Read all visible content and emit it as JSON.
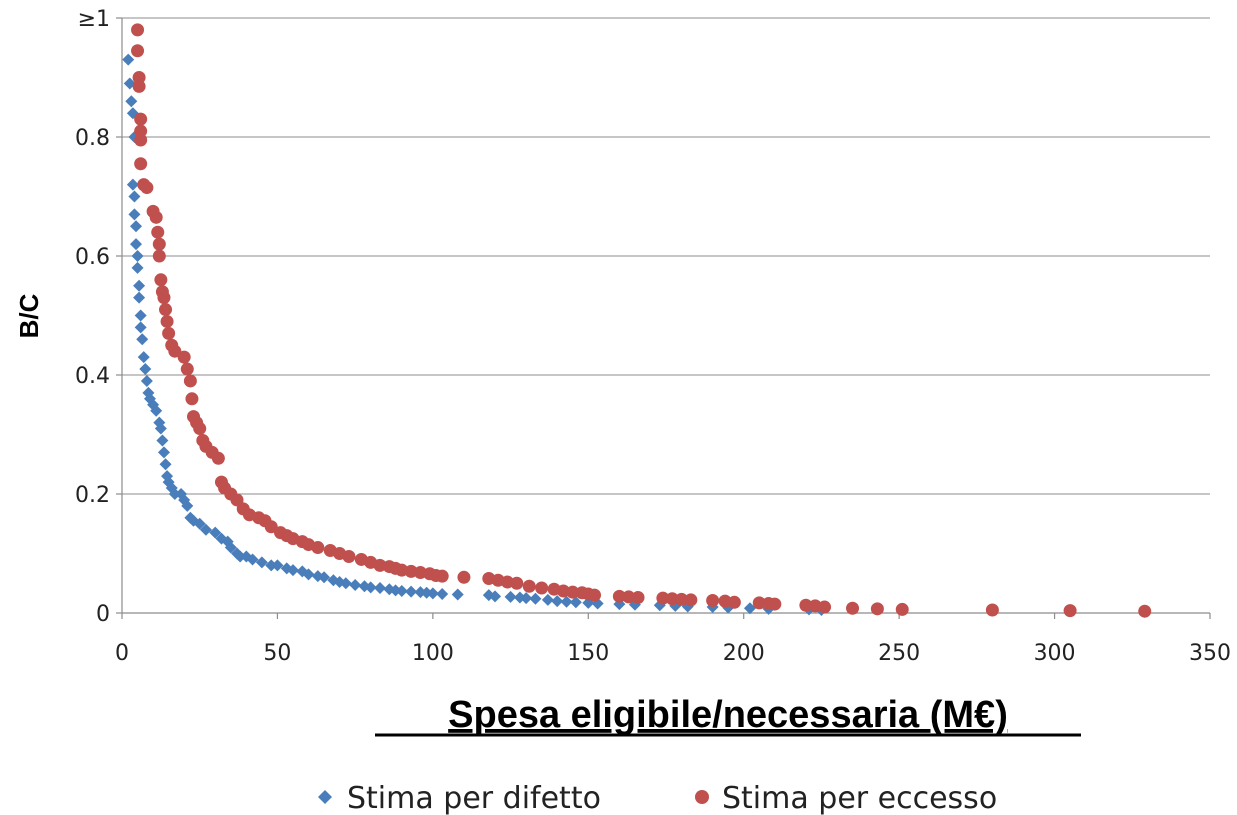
{
  "chart_data": {
    "type": "scatter",
    "xlabel": "Spesa eligibile/necessaria (M€)",
    "ylabel": "B/C",
    "xlim": [
      0,
      350
    ],
    "ylim": [
      0,
      1
    ],
    "xticks": [
      "0",
      "50",
      "100",
      "150",
      "200",
      "250",
      "300",
      "350"
    ],
    "yticks": [
      "0",
      "0.2",
      "0.4",
      "0.6",
      "0.8",
      "≥1"
    ],
    "grid": "horizontal",
    "legend_position": "bottom",
    "series": [
      {
        "name": "Stima per difetto",
        "marker": "diamond",
        "color": "#4a7ebb",
        "points": [
          [
            2,
            0.93
          ],
          [
            2.5,
            0.89
          ],
          [
            3,
            0.86
          ],
          [
            3.5,
            0.84
          ],
          [
            4,
            0.8
          ],
          [
            3.5,
            0.72
          ],
          [
            4,
            0.7
          ],
          [
            4,
            0.67
          ],
          [
            4.5,
            0.65
          ],
          [
            4.5,
            0.62
          ],
          [
            5,
            0.6
          ],
          [
            5,
            0.58
          ],
          [
            5.5,
            0.55
          ],
          [
            5.5,
            0.53
          ],
          [
            6,
            0.5
          ],
          [
            6,
            0.48
          ],
          [
            6.5,
            0.46
          ],
          [
            7,
            0.43
          ],
          [
            7.5,
            0.41
          ],
          [
            8,
            0.39
          ],
          [
            8.5,
            0.37
          ],
          [
            9,
            0.36
          ],
          [
            10,
            0.35
          ],
          [
            11,
            0.34
          ],
          [
            12,
            0.32
          ],
          [
            12.5,
            0.31
          ],
          [
            13,
            0.29
          ],
          [
            13.5,
            0.27
          ],
          [
            14,
            0.25
          ],
          [
            14.5,
            0.23
          ],
          [
            15,
            0.22
          ],
          [
            16,
            0.21
          ],
          [
            17,
            0.2
          ],
          [
            19,
            0.2
          ],
          [
            20,
            0.19
          ],
          [
            21,
            0.18
          ],
          [
            22,
            0.16
          ],
          [
            23,
            0.155
          ],
          [
            25,
            0.15
          ],
          [
            27,
            0.14
          ],
          [
            30,
            0.135
          ],
          [
            32,
            0.125
          ],
          [
            34,
            0.12
          ],
          [
            35,
            0.11
          ],
          [
            37,
            0.1
          ],
          [
            38,
            0.095
          ],
          [
            40,
            0.095
          ],
          [
            42,
            0.09
          ],
          [
            45,
            0.085
          ],
          [
            48,
            0.08
          ],
          [
            50,
            0.08
          ],
          [
            53,
            0.075
          ],
          [
            55,
            0.072
          ],
          [
            58,
            0.07
          ],
          [
            60,
            0.065
          ],
          [
            63,
            0.062
          ],
          [
            65,
            0.06
          ],
          [
            68,
            0.055
          ],
          [
            70,
            0.052
          ],
          [
            72,
            0.05
          ],
          [
            75,
            0.047
          ],
          [
            78,
            0.045
          ],
          [
            80,
            0.043
          ],
          [
            83,
            0.042
          ],
          [
            86,
            0.04
          ],
          [
            88,
            0.038
          ],
          [
            90,
            0.037
          ],
          [
            93,
            0.036
          ],
          [
            96,
            0.035
          ],
          [
            98,
            0.034
          ],
          [
            100,
            0.033
          ],
          [
            103,
            0.032
          ],
          [
            108,
            0.031
          ],
          [
            118,
            0.03
          ],
          [
            120,
            0.028
          ],
          [
            125,
            0.027
          ],
          [
            128,
            0.026
          ],
          [
            130,
            0.025
          ],
          [
            133,
            0.024
          ],
          [
            137,
            0.022
          ],
          [
            140,
            0.02
          ],
          [
            143,
            0.019
          ],
          [
            146,
            0.018
          ],
          [
            150,
            0.017
          ],
          [
            153,
            0.016
          ],
          [
            160,
            0.015
          ],
          [
            165,
            0.014
          ],
          [
            173,
            0.013
          ],
          [
            178,
            0.012
          ],
          [
            182,
            0.011
          ],
          [
            190,
            0.01
          ],
          [
            195,
            0.009
          ],
          [
            202,
            0.008
          ],
          [
            208,
            0.007
          ],
          [
            221,
            0.006
          ],
          [
            225,
            0.005
          ]
        ]
      },
      {
        "name": "Stima per eccesso",
        "marker": "circle",
        "color": "#c0504d",
        "points": [
          [
            5,
            0.98
          ],
          [
            5,
            0.945
          ],
          [
            5.5,
            0.9
          ],
          [
            5.5,
            0.885
          ],
          [
            6,
            0.83
          ],
          [
            6,
            0.81
          ],
          [
            6,
            0.795
          ],
          [
            6,
            0.755
          ],
          [
            7,
            0.72
          ],
          [
            8,
            0.715
          ],
          [
            10,
            0.675
          ],
          [
            11,
            0.665
          ],
          [
            11.5,
            0.64
          ],
          [
            12,
            0.62
          ],
          [
            12,
            0.6
          ],
          [
            12.5,
            0.56
          ],
          [
            13,
            0.54
          ],
          [
            13.5,
            0.53
          ],
          [
            14,
            0.51
          ],
          [
            14.5,
            0.49
          ],
          [
            15,
            0.47
          ],
          [
            16,
            0.45
          ],
          [
            17,
            0.44
          ],
          [
            20,
            0.43
          ],
          [
            21,
            0.41
          ],
          [
            22,
            0.39
          ],
          [
            22.5,
            0.36
          ],
          [
            23,
            0.33
          ],
          [
            24,
            0.32
          ],
          [
            25,
            0.31
          ],
          [
            26,
            0.29
          ],
          [
            27,
            0.28
          ],
          [
            29,
            0.27
          ],
          [
            31,
            0.26
          ],
          [
            32,
            0.22
          ],
          [
            33,
            0.21
          ],
          [
            35,
            0.2
          ],
          [
            37,
            0.19
          ],
          [
            39,
            0.175
          ],
          [
            41,
            0.165
          ],
          [
            44,
            0.16
          ],
          [
            46,
            0.155
          ],
          [
            48,
            0.145
          ],
          [
            51,
            0.135
          ],
          [
            53,
            0.13
          ],
          [
            55,
            0.125
          ],
          [
            58,
            0.12
          ],
          [
            60,
            0.115
          ],
          [
            63,
            0.11
          ],
          [
            67,
            0.105
          ],
          [
            70,
            0.1
          ],
          [
            73,
            0.095
          ],
          [
            77,
            0.09
          ],
          [
            80,
            0.085
          ],
          [
            83,
            0.08
          ],
          [
            86,
            0.078
          ],
          [
            88,
            0.075
          ],
          [
            90,
            0.072
          ],
          [
            93,
            0.07
          ],
          [
            96,
            0.068
          ],
          [
            99,
            0.066
          ],
          [
            101,
            0.063
          ],
          [
            103,
            0.062
          ],
          [
            110,
            0.06
          ],
          [
            118,
            0.058
          ],
          [
            121,
            0.055
          ],
          [
            124,
            0.052
          ],
          [
            127,
            0.05
          ],
          [
            131,
            0.045
          ],
          [
            135,
            0.042
          ],
          [
            139,
            0.04
          ],
          [
            142,
            0.037
          ],
          [
            145,
            0.035
          ],
          [
            148,
            0.034
          ],
          [
            150,
            0.032
          ],
          [
            152,
            0.03
          ],
          [
            160,
            0.028
          ],
          [
            163,
            0.027
          ],
          [
            166,
            0.026
          ],
          [
            174,
            0.025
          ],
          [
            177,
            0.024
          ],
          [
            180,
            0.023
          ],
          [
            183,
            0.022
          ],
          [
            190,
            0.021
          ],
          [
            194,
            0.02
          ],
          [
            197,
            0.018
          ],
          [
            205,
            0.017
          ],
          [
            208,
            0.016
          ],
          [
            210,
            0.015
          ],
          [
            220,
            0.013
          ],
          [
            223,
            0.012
          ],
          [
            226,
            0.01
          ],
          [
            235,
            0.008
          ],
          [
            243,
            0.007
          ],
          [
            251,
            0.006
          ],
          [
            280,
            0.005
          ],
          [
            305,
            0.004
          ],
          [
            329,
            0.003
          ]
        ]
      }
    ]
  }
}
